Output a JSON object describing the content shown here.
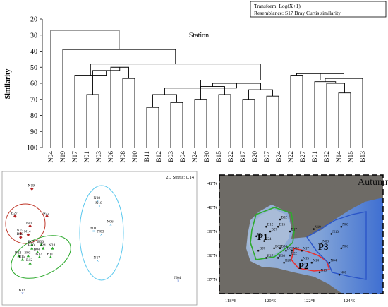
{
  "dendrogram": {
    "transform": "Transform: Log(X+1)",
    "resemblance": "Resemblance: S17 Bray Curtis similarity",
    "xlabel": "Station",
    "ylabel": "Similarity",
    "yticks": [
      "20",
      "30",
      "40",
      "50",
      "60",
      "70",
      "80",
      "90",
      "100"
    ],
    "stations": [
      "N04",
      "N19",
      "N17",
      "N01",
      "N03",
      "N06",
      "N08",
      "N10",
      "B11",
      "B12",
      "B03",
      "B04",
      "N24",
      "B30",
      "B15",
      "B22",
      "B17",
      "B20",
      "B07",
      "B24",
      "N22",
      "B27",
      "B01",
      "B32",
      "N14",
      "N15",
      "B13"
    ]
  },
  "chart_data": [
    {
      "type": "dendrogram",
      "xlabel": "Station",
      "ylabel": "Similarity",
      "ylim": [
        20,
        100
      ],
      "y_inverted": true,
      "leaves": [
        "N04",
        "N19",
        "N17",
        "N01",
        "N03",
        "N06",
        "N08",
        "N10",
        "B11",
        "B12",
        "B03",
        "B04",
        "N24",
        "B30",
        "B15",
        "B22",
        "B17",
        "B20",
        "B07",
        "B24",
        "N22",
        "B27",
        "B01",
        "B32",
        "N14",
        "N15",
        "B13"
      ],
      "merges": [
        {
          "id": "a",
          "children": [
            "N01",
            "N03"
          ],
          "similarity": 67
        },
        {
          "id": "b",
          "children": [
            "N08",
            "N10"
          ],
          "similarity": 57
        },
        {
          "id": "c",
          "children": [
            "N06",
            "b"
          ],
          "similarity": 50
        },
        {
          "id": "d",
          "children": [
            "a",
            "c"
          ],
          "similarity": 52
        },
        {
          "id": "e",
          "children": [
            "N17",
            "d"
          ],
          "similarity": 55
        },
        {
          "id": "f",
          "children": [
            "B11",
            "B12"
          ],
          "similarity": 75
        },
        {
          "id": "g",
          "children": [
            "B03",
            "B04"
          ],
          "similarity": 72
        },
        {
          "id": "h",
          "children": [
            "f",
            "g"
          ],
          "similarity": 67
        },
        {
          "id": "i",
          "children": [
            "N24",
            "B30"
          ],
          "similarity": 70
        },
        {
          "id": "j",
          "children": [
            "B15",
            "B22"
          ],
          "similarity": 67
        },
        {
          "id": "k",
          "children": [
            "i",
            "j"
          ],
          "similarity": 62
        },
        {
          "id": "l",
          "children": [
            "B17",
            "B20"
          ],
          "similarity": 70
        },
        {
          "id": "m",
          "children": [
            "B07",
            "B24"
          ],
          "similarity": 68
        },
        {
          "id": "n",
          "children": [
            "l",
            "m"
          ],
          "similarity": 64
        },
        {
          "id": "o",
          "children": [
            "k",
            "n"
          ],
          "similarity": 60
        },
        {
          "id": "p",
          "children": [
            "h",
            "o"
          ],
          "similarity": 63
        },
        {
          "id": "q",
          "children": [
            "N22",
            "B27"
          ],
          "similarity": 55
        },
        {
          "id": "r",
          "children": [
            "N14",
            "N15"
          ],
          "similarity": 66
        },
        {
          "id": "s",
          "children": [
            "B32",
            "r"
          ],
          "similarity": 60
        },
        {
          "id": "t",
          "children": [
            "B01",
            "s"
          ],
          "similarity": 59
        },
        {
          "id": "u",
          "children": [
            "t",
            "B13"
          ],
          "similarity": 57
        },
        {
          "id": "v",
          "children": [
            "q",
            "u"
          ],
          "similarity": 54
        },
        {
          "id": "w",
          "children": [
            "p",
            "v"
          ],
          "similarity": 58
        },
        {
          "id": "x",
          "children": [
            "e",
            "w"
          ],
          "similarity": 48
        },
        {
          "id": "y",
          "children": [
            "N19",
            "x"
          ],
          "similarity": 39
        },
        {
          "id": "z",
          "children": [
            "N04",
            "y"
          ],
          "similarity": 27
        }
      ]
    },
    {
      "type": "scatter",
      "title": "2D Stress: 0.14",
      "xlim": [
        0,
        100
      ],
      "ylim": [
        0,
        100
      ],
      "points": [
        {
          "label": "N19",
          "x": 14,
          "y": 90,
          "group": "red"
        },
        {
          "label": "B27",
          "x": 5,
          "y": 68,
          "group": "red"
        },
        {
          "label": "N22",
          "x": 22,
          "y": 68,
          "group": "red"
        },
        {
          "label": "B01",
          "x": 13,
          "y": 60,
          "group": "red"
        },
        {
          "label": "N15",
          "x": 8,
          "y": 54,
          "group": "red"
        },
        {
          "label": "N14",
          "x": 12,
          "y": 53,
          "group": "red"
        },
        {
          "label": "B32",
          "x": 8,
          "y": 51,
          "group": "red"
        },
        {
          "label": "B07",
          "x": 14,
          "y": 45,
          "group": "green"
        },
        {
          "label": "B30",
          "x": 19,
          "y": 45,
          "group": "green"
        },
        {
          "label": "B20",
          "x": 14,
          "y": 42,
          "group": "green"
        },
        {
          "label": "B24",
          "x": 20,
          "y": 42,
          "group": "green"
        },
        {
          "label": "N24",
          "x": 25,
          "y": 42,
          "group": "green"
        },
        {
          "label": "B04",
          "x": 17,
          "y": 39,
          "group": "green"
        },
        {
          "label": "B22",
          "x": 7,
          "y": 36,
          "group": "green"
        },
        {
          "label": "B03",
          "x": 12,
          "y": 36,
          "group": "green"
        },
        {
          "label": "B17",
          "x": 18,
          "y": 35,
          "group": "green"
        },
        {
          "label": "B11",
          "x": 24,
          "y": 35,
          "group": "green"
        },
        {
          "label": "B15",
          "x": 9,
          "y": 33,
          "group": "green"
        },
        {
          "label": "B12",
          "x": 13,
          "y": 30,
          "group": "green"
        },
        {
          "label": "N08",
          "x": 49,
          "y": 80,
          "group": "blue"
        },
        {
          "label": "N10",
          "x": 50,
          "y": 76,
          "group": "blue"
        },
        {
          "label": "N06",
          "x": 56,
          "y": 61,
          "group": "blue"
        },
        {
          "label": "N01",
          "x": 47,
          "y": 56,
          "group": "blue"
        },
        {
          "label": "N03",
          "x": 51,
          "y": 53,
          "group": "blue"
        },
        {
          "label": "N17",
          "x": 49,
          "y": 32,
          "group": "blue"
        },
        {
          "label": "N04",
          "x": 92,
          "y": 16,
          "group": "none"
        },
        {
          "label": "B13",
          "x": 9,
          "y": 6,
          "group": "none"
        }
      ]
    }
  ],
  "mds": {
    "stress": "2D Stress: 0.14"
  },
  "map": {
    "season": "Autumn",
    "lat_labels": [
      "41°N",
      "40°N",
      "39°N",
      "38°N",
      "37°N"
    ],
    "lon_labels": [
      "118°E",
      "120°E",
      "122°E",
      "124°E"
    ],
    "regions": [
      "P1",
      "P2",
      "P3"
    ],
    "stations": [
      {
        "label": "B32",
        "lon": 120.5,
        "lat": 39.5
      },
      {
        "label": "B12",
        "lon": 119.8,
        "lat": 39.2
      },
      {
        "label": "B15",
        "lon": 120.4,
        "lat": 39.2
      },
      {
        "label": "B27",
        "lon": 120.0,
        "lat": 39.0
      },
      {
        "label": "B17",
        "lon": 121.0,
        "lat": 39.0
      },
      {
        "label": "B11",
        "lon": 119.3,
        "lat": 38.8
      },
      {
        "label": "B24",
        "lon": 119.7,
        "lat": 38.6
      },
      {
        "label": "B03",
        "lon": 120.2,
        "lat": 38.3
      },
      {
        "label": "B04",
        "lon": 120.5,
        "lat": 38.3
      },
      {
        "label": "B07",
        "lon": 119.4,
        "lat": 38.2
      },
      {
        "label": "B01",
        "lon": 120.8,
        "lat": 38.2
      },
      {
        "label": "N22",
        "lon": 121.1,
        "lat": 38.2
      },
      {
        "label": "B22",
        "lon": 121.0,
        "lat": 38.0
      },
      {
        "label": "B27",
        "lon": 119.8,
        "lat": 37.9
      },
      {
        "label": "B30",
        "lon": 120.4,
        "lat": 37.9
      },
      {
        "label": "B20",
        "lon": 120.7,
        "lat": 37.7
      },
      {
        "label": "N17",
        "lon": 121.6,
        "lat": 38.2
      },
      {
        "label": "N15",
        "lon": 121.6,
        "lat": 37.8
      },
      {
        "label": "N14",
        "lon": 122.1,
        "lat": 37.7
      },
      {
        "label": "N13",
        "lon": 122.5,
        "lat": 37.3
      },
      {
        "label": "N19",
        "lon": 122.2,
        "lat": 39.1
      },
      {
        "label": "N10",
        "lon": 123.1,
        "lat": 38.9
      },
      {
        "label": "N08",
        "lon": 123.6,
        "lat": 39.2
      },
      {
        "label": "N03",
        "lon": 122.6,
        "lat": 38.5
      },
      {
        "label": "N06",
        "lon": 123.6,
        "lat": 38.3
      },
      {
        "label": "N04",
        "lon": 123.0,
        "lat": 37.7
      },
      {
        "label": "N01",
        "lon": 123.5,
        "lat": 37.2
      }
    ]
  }
}
